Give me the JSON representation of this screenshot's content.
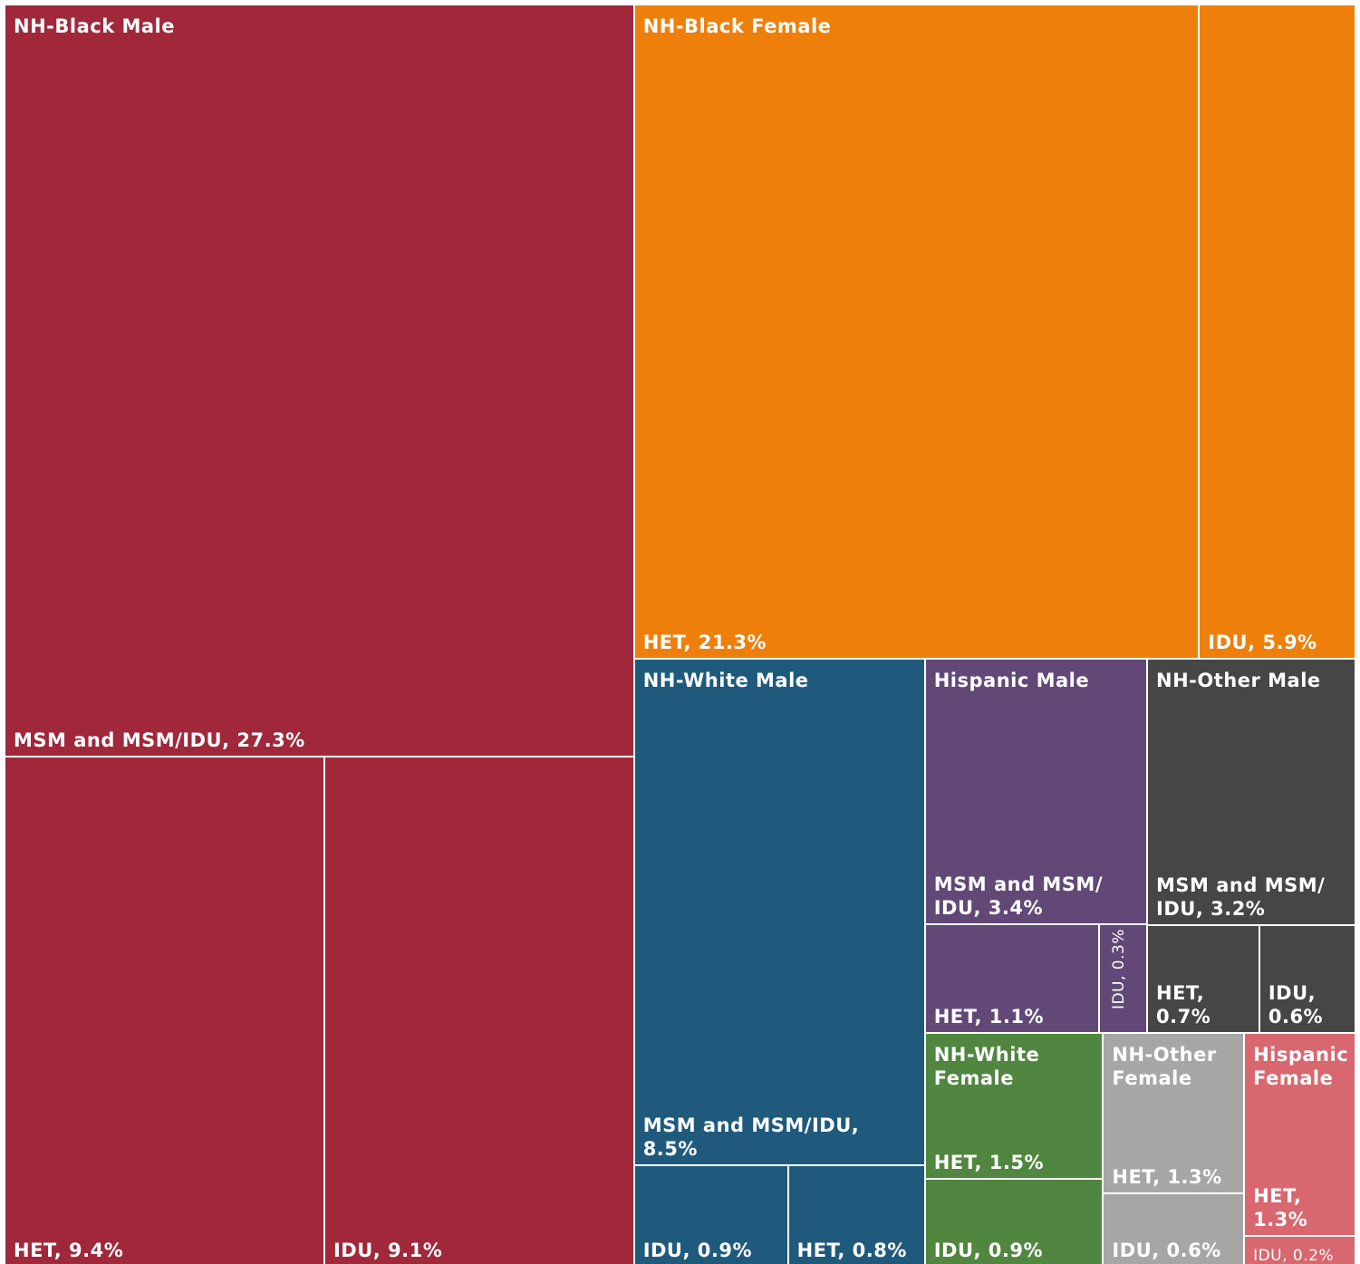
{
  "chart_data": {
    "type": "treemap",
    "groups": [
      {
        "name": "NH-Black Male",
        "color": "#a0283a",
        "items": [
          {
            "label": "MSM and MSM/IDU, 27.3%",
            "value": 27.3
          },
          {
            "label": "HET, 9.4%",
            "value": 9.4
          },
          {
            "label": "IDU, 9.1%",
            "value": 9.1
          }
        ]
      },
      {
        "name": "NH-Black Female",
        "color": "#ee7f0b",
        "items": [
          {
            "label": "HET, 21.3%",
            "value": 21.3
          },
          {
            "label": "IDU, 5.9%",
            "value": 5.9
          }
        ]
      },
      {
        "name": "NH-White Male",
        "color": "#1f5a7d",
        "items": [
          {
            "label": "MSM and MSM/IDU, 8.5%",
            "value": 8.5
          },
          {
            "label": "IDU, 0.9%",
            "value": 0.9
          },
          {
            "label": "HET, 0.8%",
            "value": 0.8
          }
        ]
      },
      {
        "name": "Hispanic Male",
        "color": "#624876",
        "items": [
          {
            "label": "MSM and MSM/ IDU, 3.4%",
            "value": 3.4
          },
          {
            "label": "HET, 1.1%",
            "value": 1.1
          },
          {
            "label": "IDU, 0.3%",
            "value": 0.3
          }
        ]
      },
      {
        "name": "NH-Other Male",
        "color": "#464646",
        "items": [
          {
            "label": "MSM and MSM/ IDU, 3.2%",
            "value": 3.2
          },
          {
            "label": "HET, 0.7%",
            "value": 0.7
          },
          {
            "label": "IDU, 0.6%",
            "value": 0.6
          }
        ]
      },
      {
        "name": "NH-White Female",
        "color": "#508640",
        "items": [
          {
            "label": "HET, 1.5%",
            "value": 1.5
          },
          {
            "label": "IDU, 0.9%",
            "value": 0.9
          }
        ]
      },
      {
        "name": "NH-Other Female",
        "color": "#a6a6a6",
        "items": [
          {
            "label": "HET, 1.3%",
            "value": 1.3
          },
          {
            "label": "IDU, 0.6%",
            "value": 0.6
          }
        ]
      },
      {
        "name": "Hispanic Female",
        "color": "#d9676f",
        "items": [
          {
            "label": "HET, 1.3%",
            "value": 1.3
          },
          {
            "label": "IDU, 0.2%",
            "value": 0.2
          }
        ]
      }
    ]
  }
}
